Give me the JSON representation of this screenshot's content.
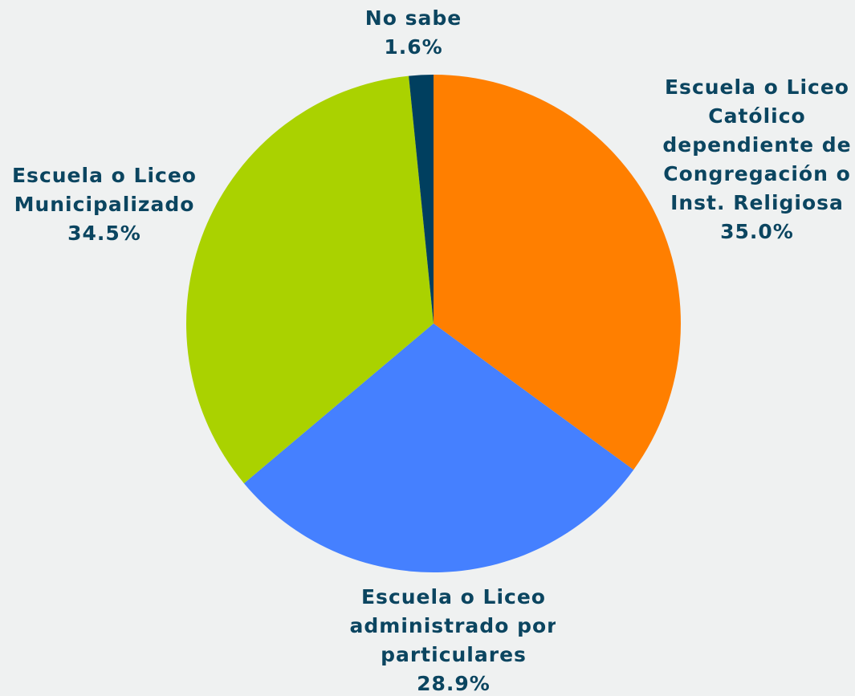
{
  "chart_data": {
    "type": "pie",
    "categories": [
      [
        "Escuela o Liceo",
        "Católico",
        "dependiente de",
        "Congregación o",
        "Inst. Religiosa"
      ],
      [
        "Escuela o Liceo",
        "administrado por",
        "particulares"
      ],
      [
        "Escuela o Liceo",
        "Municipalizado"
      ],
      [
        "No sabe"
      ]
    ],
    "values": [
      35.0,
      28.9,
      34.5,
      1.6
    ],
    "value_labels": [
      "35.0%",
      "28.9%",
      "34.5%",
      "1.6%"
    ],
    "colors": [
      "#ff7f00",
      "#4580ff",
      "#aad200",
      "#003f5f"
    ]
  }
}
